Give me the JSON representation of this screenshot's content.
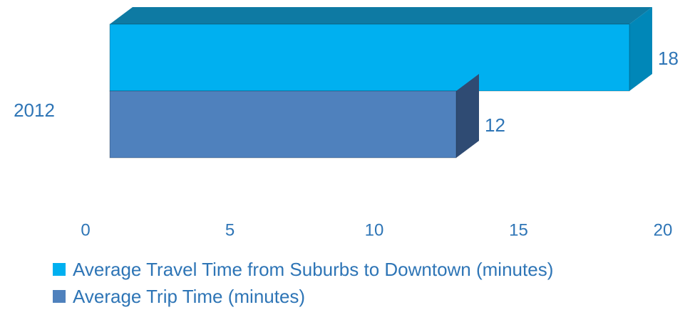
{
  "chart_data": {
    "type": "bar",
    "orientation": "horizontal",
    "three_d": true,
    "categories": [
      "2012"
    ],
    "series": [
      {
        "name": "Average Travel Time from Suburbs to Downtown (minutes)",
        "values": [
          18
        ],
        "color": "#00b0f0",
        "side_color": "#0087b8",
        "top_color": "#0e7aa3"
      },
      {
        "name": "Average Trip Time (minutes)",
        "values": [
          12
        ],
        "color": "#4f81bd",
        "side_color": "#2f4b73",
        "top_color": "#3b6294"
      }
    ],
    "data_labels": [
      "18",
      "12"
    ],
    "xlim": [
      0,
      20
    ],
    "x_ticks": [
      "0",
      "5",
      "10",
      "15",
      "20"
    ],
    "grid": false,
    "legend_position": "bottom",
    "text_color": "#2e75b6"
  }
}
